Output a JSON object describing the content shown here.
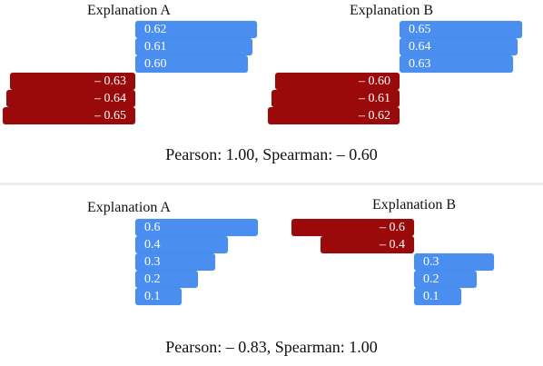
{
  "example1": {
    "explanation_a": {
      "title": "Explanation A",
      "bars": [
        "0.62",
        "0.61",
        "0.60",
        "– 0.63",
        "– 0.64",
        "– 0.65"
      ]
    },
    "explanation_b": {
      "title": "Explanation B",
      "bars": [
        "0.65",
        "0.64",
        "0.63",
        "– 0.60",
        "– 0.61",
        "– 0.62"
      ]
    },
    "correlation": "Pearson: 1.00, Spearman: – 0.60"
  },
  "example2": {
    "explanation_a": {
      "title": "Explanation A",
      "bars": [
        "0.6",
        "0.4",
        "0.3",
        "0.2",
        "0.1"
      ]
    },
    "explanation_b": {
      "title": "Explanation B",
      "bars": [
        "– 0.6",
        "– 0.4",
        "0.3",
        "0.2",
        "0.1"
      ]
    },
    "correlation": "Pearson: – 0.83, Spearman: 1.00"
  },
  "colors": {
    "positive": "#4a8ff0",
    "negative": "#9b0a0a"
  }
}
